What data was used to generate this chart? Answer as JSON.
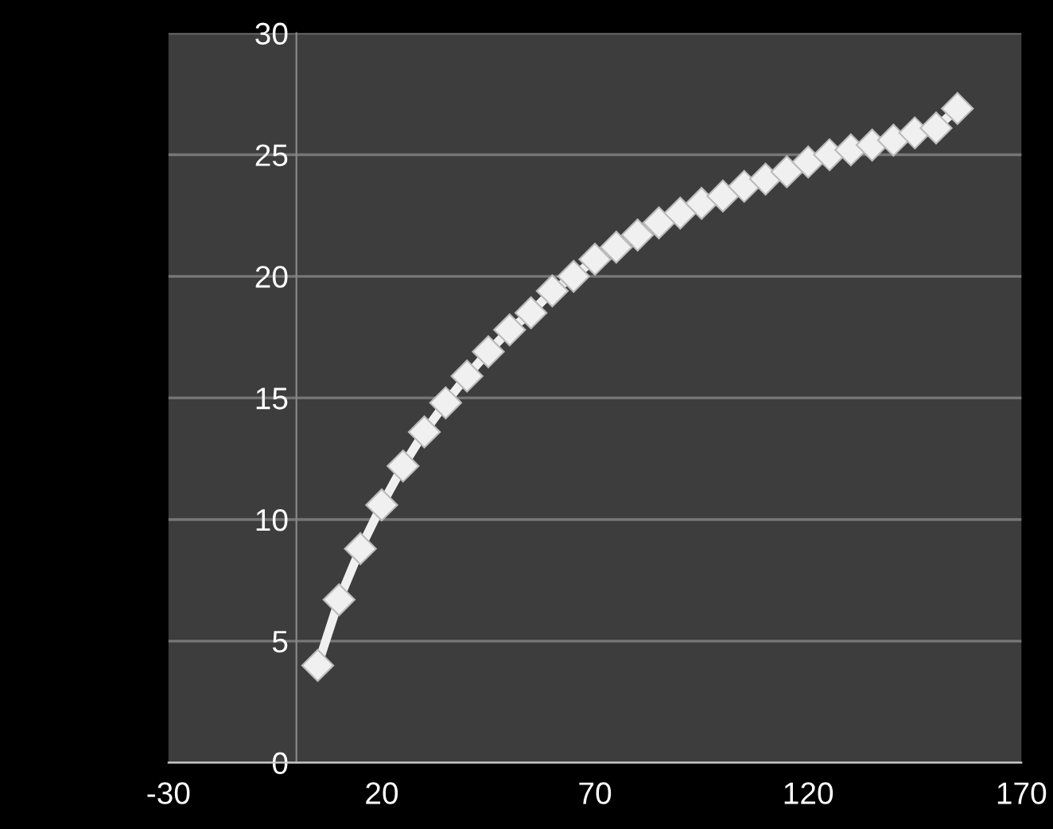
{
  "chart_data": {
    "type": "line",
    "x": [
      5,
      10,
      15,
      20,
      25,
      30,
      35,
      40,
      45,
      50,
      55,
      60,
      65,
      70,
      75,
      80,
      85,
      90,
      95,
      100,
      105,
      110,
      115,
      120,
      125,
      130,
      135,
      140,
      145,
      150,
      155
    ],
    "series": [
      {
        "color": "#f0f0f0",
        "values": [
          4.0,
          6.7,
          8.8,
          10.6,
          12.2,
          13.6,
          14.8,
          15.9,
          16.9,
          17.8,
          18.5,
          19.4,
          20.0,
          20.7,
          21.2,
          21.7,
          22.2,
          22.6,
          23.0,
          23.3,
          23.7,
          24.0,
          24.3,
          24.7,
          25.0,
          25.2,
          25.4,
          25.6,
          25.9,
          26.1,
          26.9
        ]
      }
    ],
    "xlim": [
      -30,
      170
    ],
    "xticks": [
      -30,
      20,
      70,
      120,
      170
    ],
    "ylim": [
      0,
      30
    ],
    "yticks": [
      0,
      5,
      10,
      15,
      20,
      25,
      30
    ],
    "grid": "y",
    "marker": "diamond",
    "line_style": "solid",
    "legend": false
  }
}
